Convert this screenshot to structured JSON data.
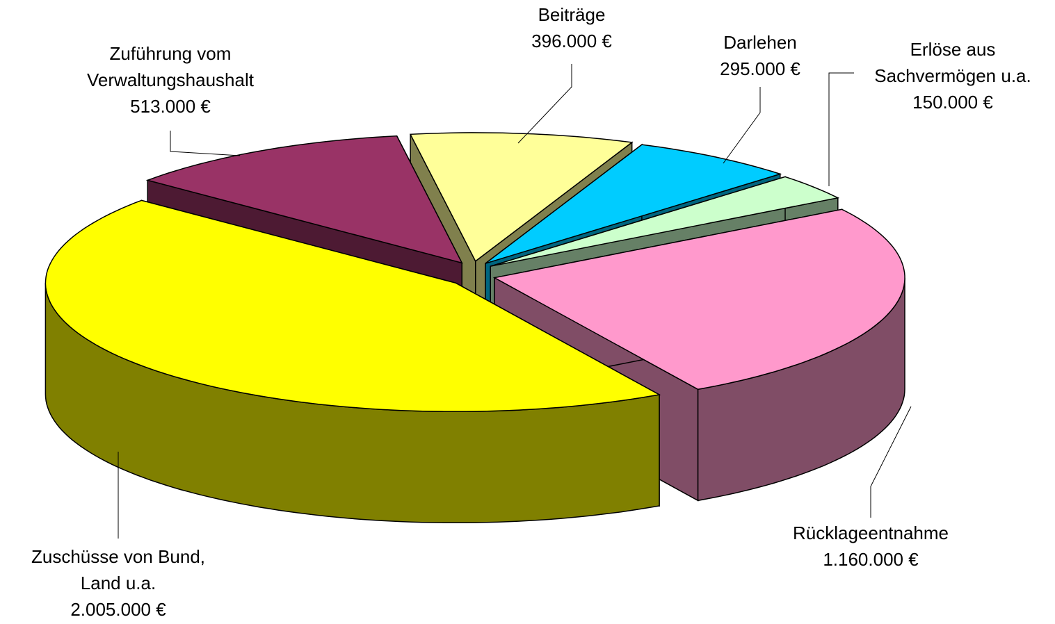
{
  "chart_data": {
    "type": "pie",
    "categories": [
      "Zuschüsse von Bund,\nLand u.a.",
      "Rücklageentnahme",
      "Erlöse aus\nSachvermögen u.a.",
      "Darlehen",
      "Beiträge",
      "Zuführung vom\nVerwaltungshaushalt"
    ],
    "values": [
      2005000,
      1160000,
      150000,
      295000,
      396000,
      513000
    ],
    "value_labels": [
      "2.005.000 €",
      "1.160.000 €",
      "150.000 €",
      "295.000 €",
      "396.000 €",
      "513.000 €"
    ],
    "colors": [
      "#ffff00",
      "#ff99cc",
      "#ccffcc",
      "#00ccff",
      "#ffff99",
      "#993366"
    ]
  }
}
